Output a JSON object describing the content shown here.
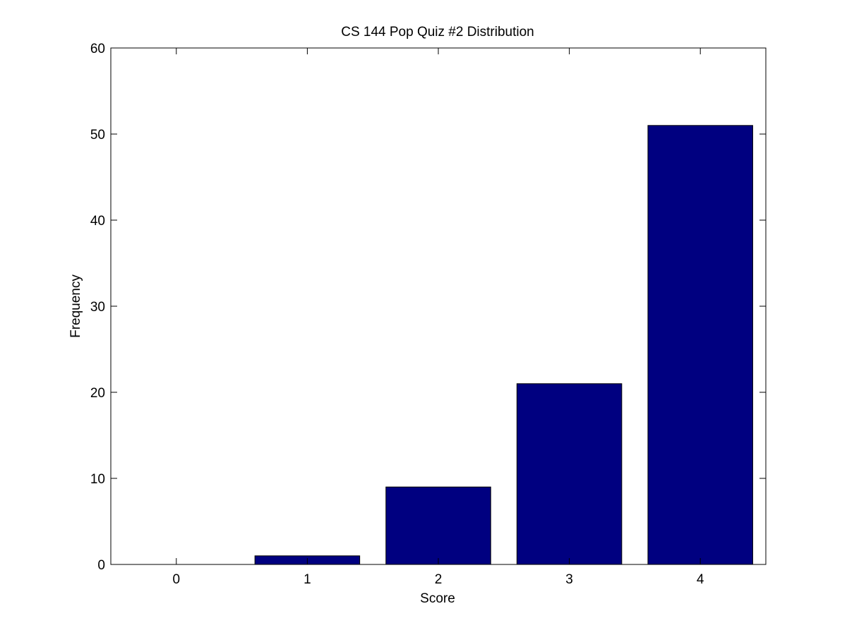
{
  "chart_data": {
    "type": "bar",
    "title": "CS 144 Pop Quiz #2 Distribution",
    "xlabel": "Score",
    "ylabel": "Frequency",
    "x": [
      0,
      1,
      2,
      3,
      4
    ],
    "values": [
      0,
      1,
      9,
      21,
      51
    ],
    "color": "#000080",
    "xlim": [
      -0.5,
      4.5
    ],
    "xticks": [
      0,
      1,
      2,
      3,
      4
    ],
    "ylim": [
      0,
      60
    ],
    "yticks": [
      0,
      10,
      20,
      30,
      40,
      50,
      60
    ]
  }
}
